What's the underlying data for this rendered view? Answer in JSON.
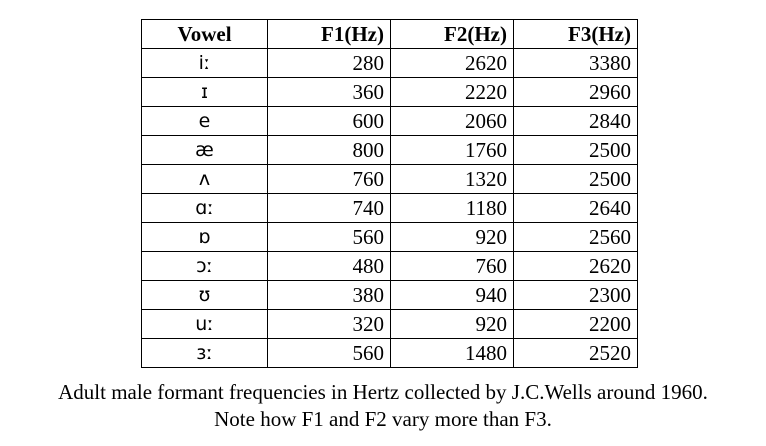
{
  "table": {
    "headers": [
      "Vowel",
      "F1(Hz)",
      "F2(Hz)",
      "F3(Hz)"
    ],
    "rows": [
      {
        "vowel": "iː",
        "f1": "280",
        "f2": "2620",
        "f3": "3380"
      },
      {
        "vowel": "ɪ",
        "f1": "360",
        "f2": "2220",
        "f3": "2960"
      },
      {
        "vowel": "e",
        "f1": "600",
        "f2": "2060",
        "f3": "2840"
      },
      {
        "vowel": "æ",
        "f1": "800",
        "f2": "1760",
        "f3": "2500"
      },
      {
        "vowel": "ʌ",
        "f1": "760",
        "f2": "1320",
        "f3": "2500"
      },
      {
        "vowel": "ɑː",
        "f1": "740",
        "f2": "1180",
        "f3": "2640"
      },
      {
        "vowel": "ɒ",
        "f1": "560",
        "f2": "920",
        "f3": "2560"
      },
      {
        "vowel": "ɔː",
        "f1": "480",
        "f2": "760",
        "f3": "2620"
      },
      {
        "vowel": "ʊ",
        "f1": "380",
        "f2": "940",
        "f3": "2300"
      },
      {
        "vowel": "uː",
        "f1": "320",
        "f2": "920",
        "f3": "2200"
      },
      {
        "vowel": "ɜː",
        "f1": "560",
        "f2": "1480",
        "f3": "2520"
      }
    ]
  },
  "caption": {
    "line1": "Adult male formant frequencies in Hertz collected by J.C.Wells around 1960.",
    "line2": "Note how F1 and F2 vary more than F3."
  }
}
